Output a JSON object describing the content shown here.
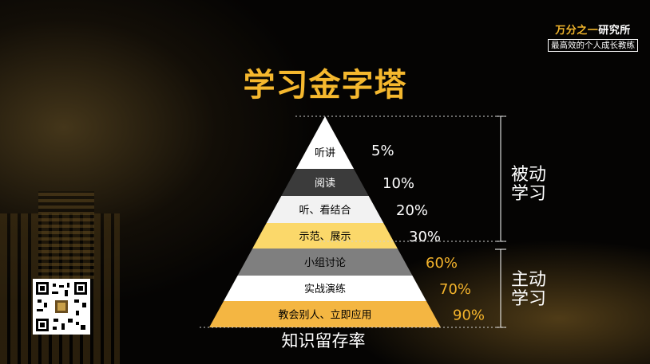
{
  "brand": {
    "name_gold": "万分之一",
    "name_white": "研究所",
    "tagline": "最高效的个人成长教练"
  },
  "title": "学习金字塔",
  "caption": "知识留存率",
  "groups": {
    "passive": "被动学习",
    "active": "主动学习"
  },
  "tiers": [
    {
      "label": "听讲",
      "value": "5%",
      "fill": "#ffffff",
      "text_color": "#000000",
      "value_color": "#ffffff"
    },
    {
      "label": "阅读",
      "value": "10%",
      "fill": "#3b3b3b",
      "text_color": "#ffffff",
      "value_color": "#ffffff"
    },
    {
      "label": "听、看结合",
      "value": "20%",
      "fill": "#f2f2f2",
      "text_color": "#000000",
      "value_color": "#ffffff"
    },
    {
      "label": "示范、展示",
      "value": "30%",
      "fill": "#fbd86a",
      "text_color": "#000000",
      "value_color": "#ffffff"
    },
    {
      "label": "小组讨论",
      "value": "60%",
      "fill": "#7f7f7f",
      "text_color": "#000000",
      "value_color": "#f4b42c"
    },
    {
      "label": "实战演练",
      "value": "70%",
      "fill": "#ffffff",
      "text_color": "#000000",
      "value_color": "#f4b42c"
    },
    {
      "label": "教会别人、立即应用",
      "value": "90%",
      "fill": "#f4b642",
      "text_color": "#000000",
      "value_color": "#f4b42c"
    }
  ]
}
